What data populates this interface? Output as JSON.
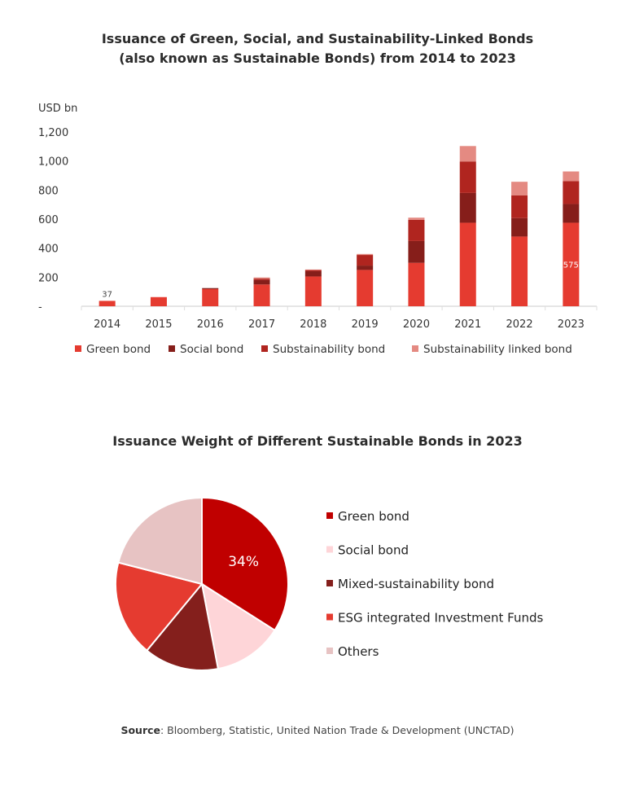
{
  "chart_data": [
    {
      "type": "bar",
      "stacked": true,
      "title_line1": "Issuance of Green, Social, and Sustainability-Linked Bonds",
      "title_line2": "(also known as Sustainable Bonds) from 2014 to 2023",
      "ylabel": "USD bn",
      "ylim": [
        0,
        1200
      ],
      "yticks": [
        "-",
        "200",
        "400",
        "600",
        "800",
        "1,000",
        "1,200"
      ],
      "categories": [
        "2014",
        "2015",
        "2016",
        "2017",
        "2018",
        "2019",
        "2020",
        "2021",
        "2022",
        "2023"
      ],
      "series": [
        {
          "name": "Green bond",
          "color": "#e53b30",
          "values": [
            37,
            63,
            118,
            150,
            205,
            250,
            299,
            575,
            480,
            575
          ]
        },
        {
          "name": "Social bond",
          "color": "#861e1a",
          "values": [
            0,
            0,
            7,
            30,
            36,
            30,
            150,
            205,
            127,
            129
          ]
        },
        {
          "name": "Substainability bond",
          "color": "#b0251f",
          "values": [
            0,
            0,
            0,
            10,
            8,
            73,
            146,
            217,
            157,
            157
          ]
        },
        {
          "name": "Substainability linked bond",
          "color": "#e48a82",
          "values": [
            0,
            0,
            0,
            8,
            4,
            7,
            15,
            106,
            93,
            67
          ]
        }
      ],
      "data_labels": [
        {
          "category": "2014",
          "text": "37",
          "color": "#444"
        },
        {
          "category": "2023",
          "text": "575",
          "color": "#ffffff"
        }
      ],
      "grid": false,
      "legend": "bottom"
    },
    {
      "type": "pie",
      "title": "Issuance Weight of Different Sustainable Bonds in 2023",
      "slices": [
        {
          "name": "Green bond",
          "value": 34,
          "color": "#c00000",
          "label": "34%"
        },
        {
          "name": "Social bond",
          "value": 13,
          "color": "#fed5d8"
        },
        {
          "name": "Mixed-sustainability bond",
          "value": 14,
          "color": "#841f1c"
        },
        {
          "name": "ESG integrated Investment Funds",
          "value": 18,
          "color": "#e53b30"
        },
        {
          "name": "Others",
          "value": 21,
          "color": "#e7c3c3"
        }
      ],
      "legend": "right"
    }
  ],
  "source": {
    "label": "Source",
    "text": ": Bloomberg, Statistic, United Nation Trade & Development (UNCTAD)"
  }
}
